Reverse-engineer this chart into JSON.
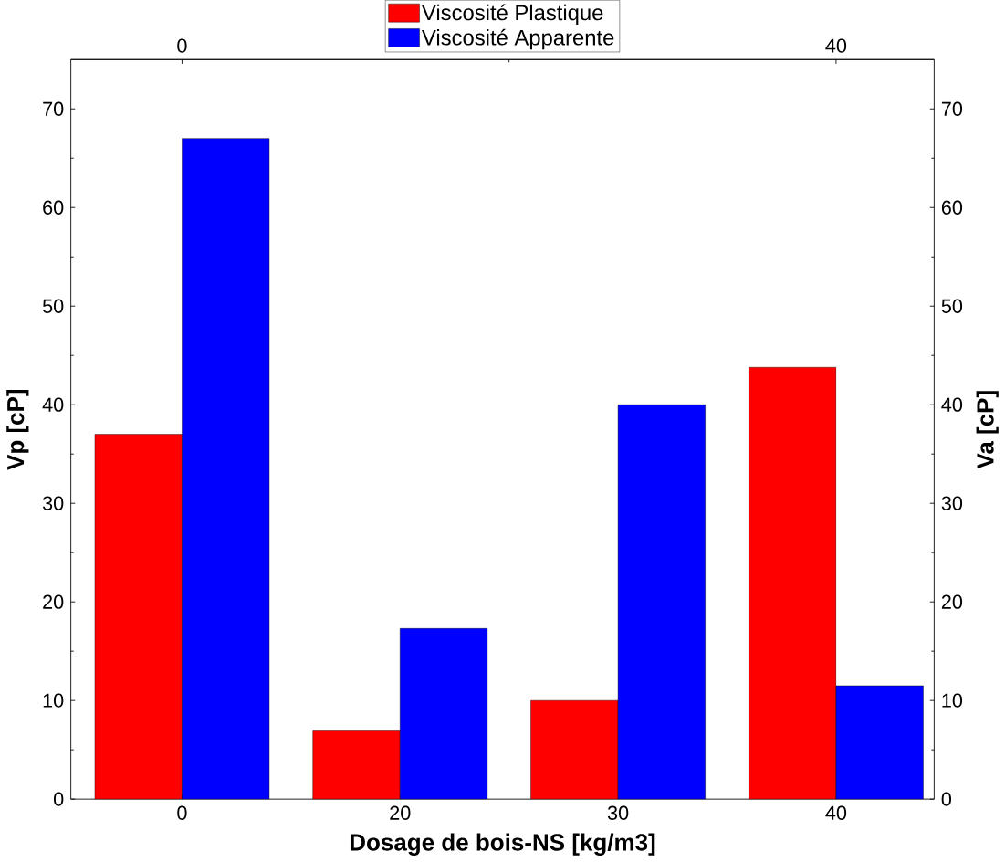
{
  "chart_data": {
    "type": "bar",
    "xlabel": "Dosage de bois-NS [kg/m3]",
    "ylabel": "Vp [cP]",
    "y2label": "Va [cP]",
    "categories": [
      "0",
      "20",
      "30",
      "40"
    ],
    "series": [
      {
        "name": "Viscosité Plastique",
        "color": "#ff0000",
        "values": [
          37,
          7,
          10,
          43.8
        ]
      },
      {
        "name": "Viscosité Apparente",
        "color": "#0000ff",
        "values": [
          67,
          17.3,
          40,
          11.5
        ],
        "axis": "y2"
      }
    ],
    "ylim": [
      0,
      75
    ],
    "yticks": [
      0,
      10,
      20,
      30,
      40,
      50,
      60,
      70
    ],
    "y2lim": [
      0,
      75
    ],
    "y2ticks": [
      0,
      10,
      20,
      30,
      40,
      50,
      60,
      70
    ],
    "x2lim": [
      -6.8,
      46
    ],
    "x2ticks": [
      0,
      40
    ],
    "grid": false,
    "legend": "top"
  }
}
